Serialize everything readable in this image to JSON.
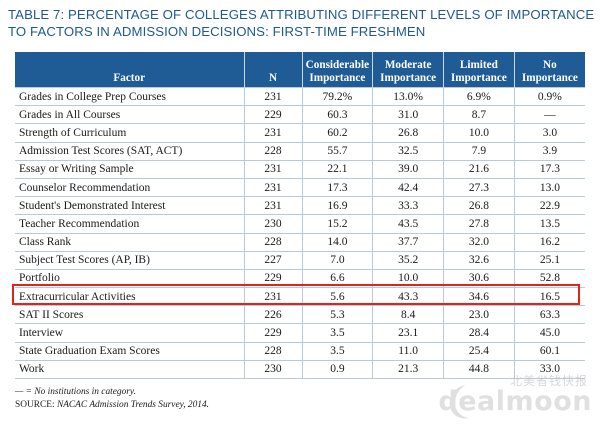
{
  "title": {
    "line1": "TABLE 7: PERCENTAGE OF COLLEGES ATTRIBUTING DIFFERENT LEVELS OF IMPORTANCE",
    "line2": "TO FACTORS IN ADMISSION DECISIONS: FIRST-TIME FRESHMEN"
  },
  "headers": {
    "factor": "Factor",
    "n": "N",
    "considerable_line1": "Considerable",
    "considerable_line2": "Importance",
    "moderate_line1": "Moderate",
    "moderate_line2": "Importance",
    "limited_line1": "Limited",
    "limited_line2": "Importance",
    "no_line1": "No",
    "no_line2": "Importance"
  },
  "rows": [
    {
      "factor": "Grades in College Prep Courses",
      "n": "231",
      "considerable": "79.2%",
      "moderate": "13.0%",
      "limited": "6.9%",
      "no": "0.9%"
    },
    {
      "factor": "Grades in All Courses",
      "n": "229",
      "considerable": "60.3",
      "moderate": "31.0",
      "limited": "8.7",
      "no": "—"
    },
    {
      "factor": "Strength of Curriculum",
      "n": "231",
      "considerable": "60.2",
      "moderate": "26.8",
      "limited": "10.0",
      "no": "3.0"
    },
    {
      "factor": "Admission Test Scores (SAT, ACT)",
      "n": "228",
      "considerable": "55.7",
      "moderate": "32.5",
      "limited": "7.9",
      "no": "3.9"
    },
    {
      "factor": "Essay or Writing Sample",
      "n": "231",
      "considerable": "22.1",
      "moderate": "39.0",
      "limited": "21.6",
      "no": "17.3"
    },
    {
      "factor": "Counselor Recommendation",
      "n": "231",
      "considerable": "17.3",
      "moderate": "42.4",
      "limited": "27.3",
      "no": "13.0"
    },
    {
      "factor": "Student's Demonstrated Interest",
      "n": "231",
      "considerable": "16.9",
      "moderate": "33.3",
      "limited": "26.8",
      "no": "22.9"
    },
    {
      "factor": "Teacher Recommendation",
      "n": "230",
      "considerable": "15.2",
      "moderate": "43.5",
      "limited": "27.8",
      "no": "13.5"
    },
    {
      "factor": "Class Rank",
      "n": "228",
      "considerable": "14.0",
      "moderate": "37.7",
      "limited": "32.0",
      "no": "16.2"
    },
    {
      "factor": "Subject Test Scores (AP, IB)",
      "n": "227",
      "considerable": "7.0",
      "moderate": "35.2",
      "limited": "32.6",
      "no": "25.1"
    },
    {
      "factor": "Portfolio",
      "n": "229",
      "considerable": "6.6",
      "moderate": "10.0",
      "limited": "30.6",
      "no": "52.8"
    },
    {
      "factor": "Extracurricular Activities",
      "n": "231",
      "considerable": "5.6",
      "moderate": "43.3",
      "limited": "34.6",
      "no": "16.5"
    },
    {
      "factor": "SAT II Scores",
      "n": "226",
      "considerable": "5.3",
      "moderate": "8.4",
      "limited": "23.0",
      "no": "63.3"
    },
    {
      "factor": "Interview",
      "n": "229",
      "considerable": "3.5",
      "moderate": "23.1",
      "limited": "28.4",
      "no": "45.0"
    },
    {
      "factor": "State Graduation Exam Scores",
      "n": "228",
      "considerable": "3.5",
      "moderate": "11.0",
      "limited": "25.4",
      "no": "60.1"
    },
    {
      "factor": "Work",
      "n": "230",
      "considerable": "0.9",
      "moderate": "21.3",
      "limited": "44.8",
      "no": "33.0"
    }
  ],
  "highlighted_row": "Extracurricular Activities",
  "highlight_color": "#e2231a",
  "header_color": "#1f5b95",
  "title_color": "#1f5a8f",
  "notes": {
    "legend": "— = No institutions in category.",
    "source_prefix": "SOURCE: ",
    "source_title": "NACAC Admission Trends Survey, 2014."
  },
  "watermark": {
    "chinese": "北美省钱快报",
    "brand": "dealmoon"
  }
}
